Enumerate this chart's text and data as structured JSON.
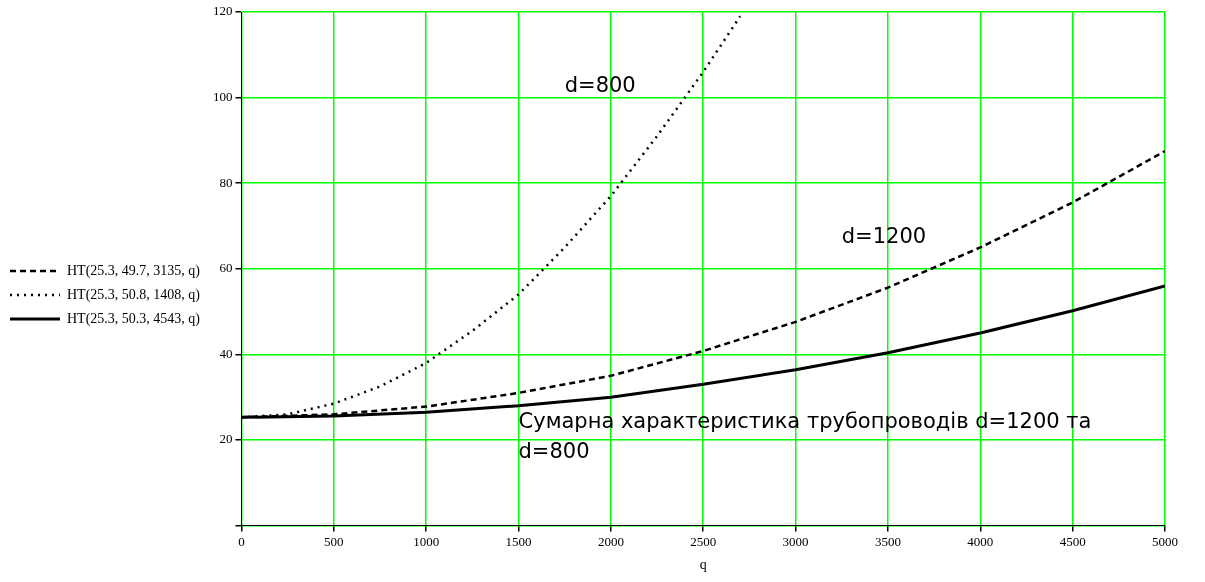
{
  "chart_data": {
    "type": "line",
    "xlabel": "q",
    "xlim": [
      0,
      5000
    ],
    "xticks": [
      0,
      500,
      1000,
      1500,
      2000,
      2500,
      3000,
      3500,
      4000,
      4500,
      5000
    ],
    "ylim": [
      0,
      120
    ],
    "yticks": [
      {
        "value": 0,
        "label": null
      },
      20,
      40,
      60,
      80,
      100,
      120
    ],
    "grid": true,
    "legend": "left",
    "marker": "none",
    "series": [
      {
        "name": "HT(25.3, 49.7, 3135, q)",
        "color": "#000000",
        "line_style": "dashed",
        "x": [
          0,
          500,
          1000,
          1500,
          2000,
          2500,
          3000,
          3500,
          4000,
          4500,
          5000
        ],
        "values": [
          25.3,
          26,
          27.8,
          31,
          35,
          40.8,
          47.6,
          55.6,
          65,
          75.5,
          87.5
        ]
      },
      {
        "name": "HT(25.3, 50.8, 1408, q)",
        "color": "#000000",
        "line_style": "dotted",
        "x": [
          0,
          250,
          500,
          750,
          1000,
          1250,
          1500,
          1750,
          2000,
          2250,
          2500,
          2700
        ],
        "values": [
          25.3,
          26,
          28.5,
          32.5,
          38,
          45.5,
          54,
          65,
          77,
          91,
          106,
          119
        ]
      },
      {
        "name": "HT(25.3, 50.3, 4543, q)",
        "color": "#000000",
        "line_style": "solid",
        "x": [
          0,
          500,
          1000,
          1500,
          2000,
          2500,
          3000,
          3500,
          4000,
          4500,
          5000
        ],
        "values": [
          25.3,
          25.6,
          26.5,
          28,
          30,
          33,
          36.4,
          40.4,
          45,
          50.2,
          56
        ]
      }
    ],
    "annotations": [
      "d=800",
      "d=1200",
      "Сумарна характеристика трубопроводів d=1200 та d=800"
    ]
  }
}
